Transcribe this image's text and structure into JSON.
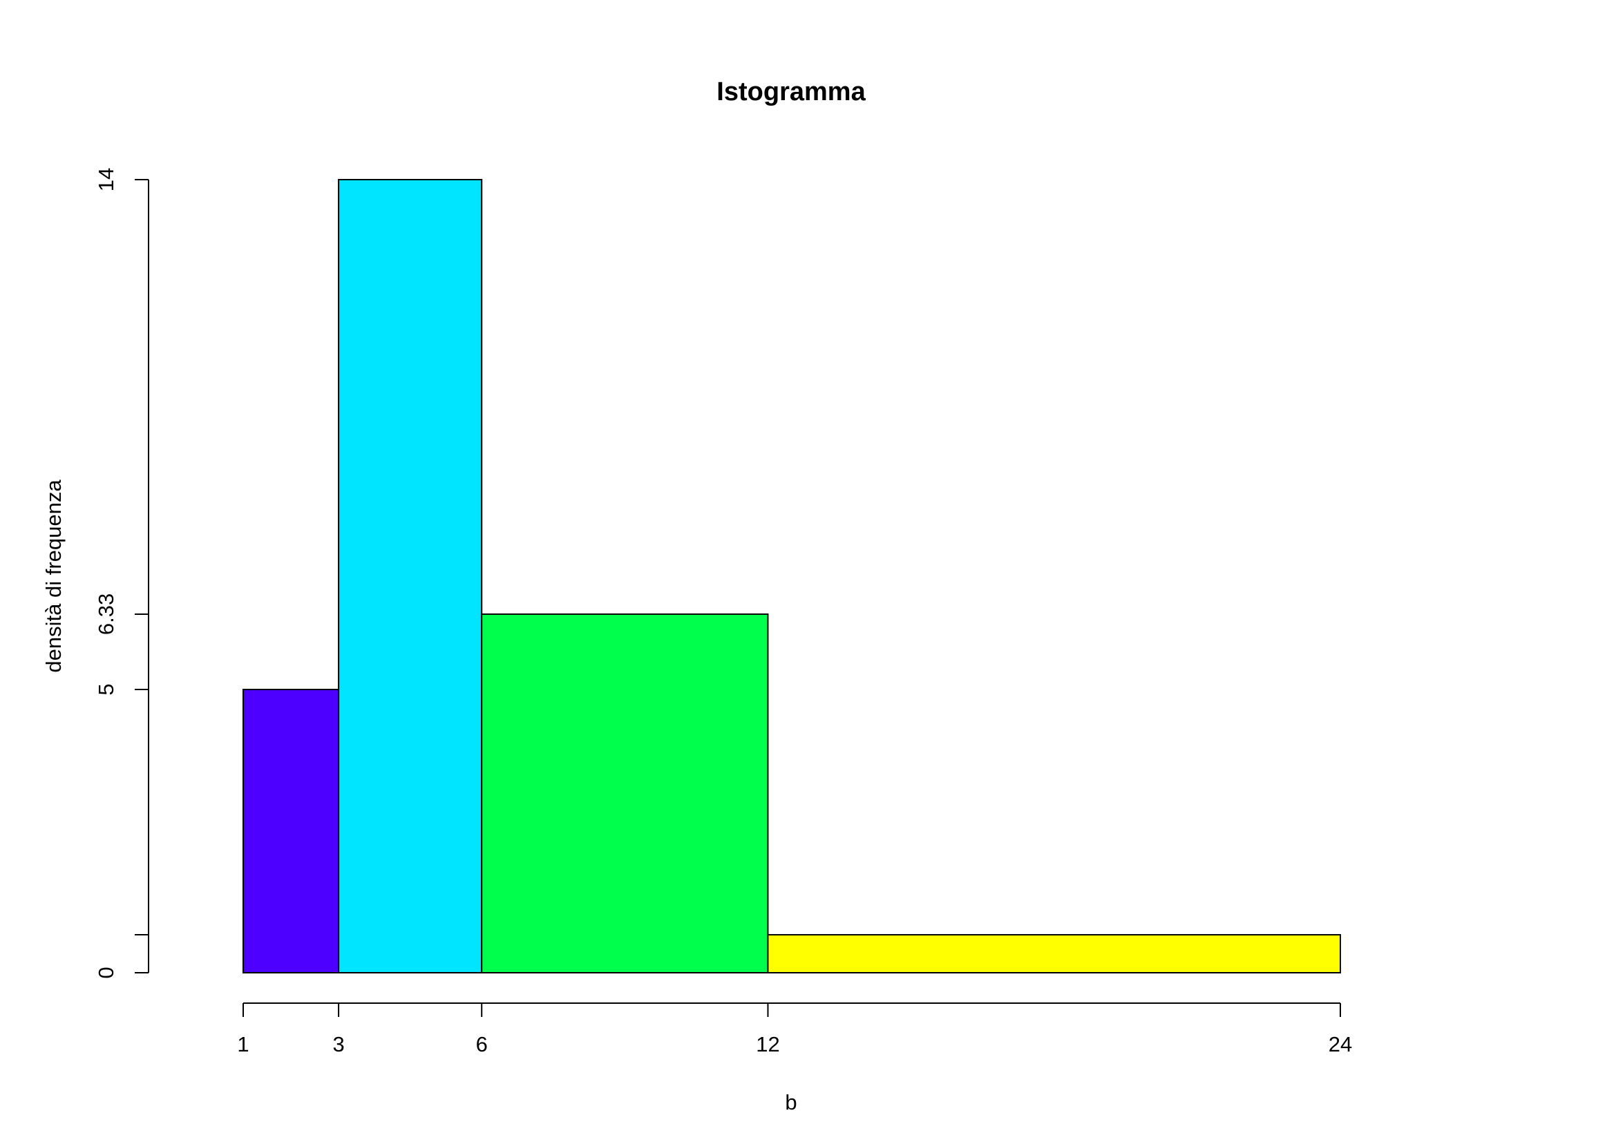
{
  "chart_data": {
    "type": "bar",
    "title": "Istogramma",
    "xlabel": "b",
    "ylabel": "densità di frequenza",
    "breaks": [
      1,
      3,
      6,
      12,
      24
    ],
    "bins": [
      {
        "from": 1,
        "to": 3,
        "density": 5,
        "color": "#4D00FF"
      },
      {
        "from": 3,
        "to": 6,
        "density": 14,
        "color": "#00E5FF"
      },
      {
        "from": 6,
        "to": 12,
        "density": 6.33,
        "color": "#00FF4D"
      },
      {
        "from": 12,
        "to": 24,
        "density": 0.67,
        "color": "#FFFF00"
      }
    ],
    "x_ticks": [
      "1",
      "3",
      "6",
      "12",
      "24"
    ],
    "y_ticks": [
      "0",
      "5",
      "6.33",
      "14"
    ],
    "y_tick_values": [
      0,
      0.67,
      5,
      6.33,
      14
    ],
    "xlim": [
      1,
      24
    ],
    "ylim": [
      0,
      14
    ],
    "grid": false
  }
}
